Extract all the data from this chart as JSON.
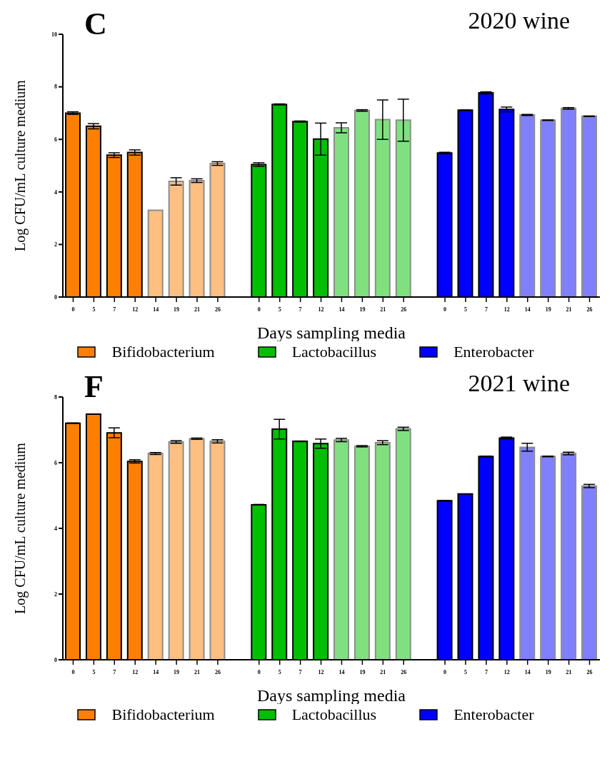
{
  "chart_data": [
    {
      "type": "bar",
      "title": "2020 wine",
      "xlabel": "Days sampling media",
      "ylabel": "Log CFU/mL culture medium",
      "annotations": [
        "C"
      ],
      "categories": [
        "0",
        "5",
        "7",
        "12",
        "14",
        "19",
        "21",
        "26",
        null,
        "0",
        "5",
        "7",
        "12",
        "14",
        "19",
        "21",
        "26",
        null,
        "0",
        "5",
        "7",
        "12",
        "14",
        "19",
        "21",
        "26"
      ],
      "series": [
        {
          "name": "Bifidobacterium",
          "color": "#ff8000",
          "values": [
            7.0,
            6.5,
            5.4,
            5.5,
            3.3,
            4.4,
            4.43,
            5.08,
            null,
            null,
            null,
            null,
            null,
            null,
            null,
            null,
            null,
            null,
            null,
            null,
            null,
            null,
            null,
            null,
            null,
            null
          ],
          "errors": [
            0.05,
            0.1,
            0.09,
            0.1,
            null,
            0.14,
            0.07,
            0.07,
            null,
            null,
            null,
            null,
            null,
            null,
            null,
            null,
            null,
            null,
            null,
            null,
            null,
            null,
            null,
            null,
            null,
            null
          ],
          "colors": [
            "#ff8000",
            "#ff8000",
            "#ff8000",
            "#ff8000",
            "#ffbf80",
            "#ffbf80",
            "#ffbf80",
            "#ffbf80",
            null,
            null,
            null,
            null,
            null,
            null,
            null,
            null,
            null,
            null,
            null,
            null,
            null,
            null,
            null,
            null,
            null,
            null
          ]
        },
        {
          "name": "Lactobacillus",
          "color": "#00bf00",
          "values": [
            null,
            null,
            null,
            null,
            null,
            null,
            null,
            null,
            null,
            5.04,
            7.33,
            6.68,
            6.01,
            6.44,
            7.1,
            6.75,
            6.73,
            null,
            null,
            null,
            null,
            null,
            null,
            null,
            null,
            null
          ],
          "errors": [
            null,
            null,
            null,
            null,
            null,
            null,
            null,
            null,
            null,
            0.07,
            0.02,
            0.02,
            0.61,
            0.19,
            0.03,
            0.75,
            0.8,
            null,
            null,
            null,
            null,
            null,
            null,
            null,
            null,
            null
          ],
          "colors": [
            null,
            null,
            null,
            null,
            null,
            null,
            null,
            null,
            null,
            "#00bf00",
            "#00bf00",
            "#00bf00",
            "#00bf00",
            "#80e080",
            "#80e080",
            "#80e080",
            "#80e080",
            null,
            null,
            null,
            null,
            null,
            null,
            null,
            null,
            null
          ]
        },
        {
          "name": "Enterobacter",
          "color": "#0000ff",
          "values": [
            null,
            null,
            null,
            null,
            null,
            null,
            null,
            null,
            null,
            null,
            null,
            null,
            null,
            null,
            null,
            null,
            null,
            null,
            5.48,
            7.11,
            7.77,
            7.14,
            6.93,
            6.73,
            7.18,
            6.88
          ],
          "errors": [
            null,
            null,
            null,
            null,
            null,
            null,
            null,
            null,
            null,
            null,
            null,
            null,
            null,
            null,
            null,
            null,
            null,
            null,
            0.03,
            0.01,
            0.04,
            0.09,
            0.02,
            0.01,
            0.03,
            0.01
          ],
          "colors": [
            null,
            null,
            null,
            null,
            null,
            null,
            null,
            null,
            null,
            null,
            null,
            null,
            null,
            null,
            null,
            null,
            null,
            null,
            "#0000ff",
            "#0000ff",
            "#0000ff",
            "#0000ff",
            "#8080ff",
            "#8080ff",
            "#8080ff",
            "#8080ff"
          ]
        }
      ],
      "ylim": [
        0,
        10
      ],
      "yticks": [
        0,
        2,
        4,
        6,
        8,
        10
      ],
      "legend": "bottom"
    },
    {
      "type": "bar",
      "title": "2021 wine",
      "xlabel": "Days sampling media",
      "ylabel": "Log CFU/mL culture medium",
      "annotations": [
        "F"
      ],
      "categories": [
        "0",
        "5",
        "7",
        "12",
        "14",
        "19",
        "21",
        "26",
        null,
        "0",
        "5",
        "7",
        "12",
        "14",
        "19",
        "21",
        "26",
        null,
        "0",
        "5",
        "7",
        "12",
        "14",
        "19",
        "21",
        "26"
      ],
      "series": [
        {
          "name": "Bifidobacterium",
          "color": "#ff8000",
          "values": [
            7.2,
            7.48,
            6.91,
            6.04,
            6.28,
            6.63,
            6.73,
            6.65,
            null,
            null,
            null,
            null,
            null,
            null,
            null,
            null,
            null,
            null,
            null,
            null,
            null,
            null,
            null,
            null,
            null,
            null
          ],
          "errors": [
            0.01,
            null,
            0.15,
            0.05,
            0.03,
            0.04,
            0.02,
            0.05,
            null,
            null,
            null,
            null,
            null,
            null,
            null,
            null,
            null,
            null,
            null,
            null,
            null,
            null,
            null,
            null,
            null,
            null
          ],
          "colors": [
            "#ff8000",
            "#ff8000",
            "#ff8000",
            "#ff8000",
            "#ffbf80",
            "#ffbf80",
            "#ffbf80",
            "#ffbf80",
            null,
            null,
            null,
            null,
            null,
            null,
            null,
            null,
            null,
            null,
            null,
            null,
            null,
            null,
            null,
            null,
            null,
            null
          ]
        },
        {
          "name": "Lactobacillus",
          "color": "#00bf00",
          "values": [
            null,
            null,
            null,
            null,
            null,
            null,
            null,
            null,
            null,
            4.72,
            7.02,
            6.65,
            6.58,
            6.69,
            6.5,
            6.61,
            7.03,
            null,
            null,
            null,
            null,
            null,
            null,
            null,
            null,
            null
          ],
          "errors": [
            null,
            null,
            null,
            null,
            null,
            null,
            null,
            null,
            null,
            0.01,
            0.3,
            0.01,
            0.14,
            0.05,
            0.02,
            0.06,
            0.05,
            null,
            null,
            null,
            null,
            null,
            null,
            null,
            null,
            null
          ],
          "colors": [
            null,
            null,
            null,
            null,
            null,
            null,
            null,
            null,
            null,
            "#00bf00",
            "#00bf00",
            "#00bf00",
            "#00bf00",
            "#80e080",
            "#80e080",
            "#80e080",
            "#80e080",
            null,
            null,
            null,
            null,
            null,
            null,
            null,
            null,
            null
          ]
        },
        {
          "name": "Enterobacter",
          "color": "#0000ff",
          "values": [
            null,
            null,
            null,
            null,
            null,
            null,
            null,
            null,
            null,
            null,
            null,
            null,
            null,
            null,
            null,
            null,
            null,
            null,
            4.84,
            5.05,
            6.19,
            6.75,
            6.47,
            6.19,
            6.28,
            5.29
          ],
          "errors": [
            null,
            null,
            null,
            null,
            null,
            null,
            null,
            null,
            null,
            null,
            null,
            null,
            null,
            null,
            null,
            null,
            null,
            null,
            0.01,
            null,
            0.01,
            0.03,
            0.12,
            0.01,
            0.04,
            0.05
          ],
          "colors": [
            null,
            null,
            null,
            null,
            null,
            null,
            null,
            null,
            null,
            null,
            null,
            null,
            null,
            null,
            null,
            null,
            null,
            null,
            "#0000ff",
            "#0000ff",
            "#0000ff",
            "#0000ff",
            "#8080ff",
            "#8080ff",
            "#8080ff",
            "#8080ff"
          ]
        }
      ],
      "ylim": [
        0,
        8
      ],
      "yticks": [
        0,
        2,
        4,
        6,
        8
      ],
      "legend": "bottom"
    }
  ]
}
